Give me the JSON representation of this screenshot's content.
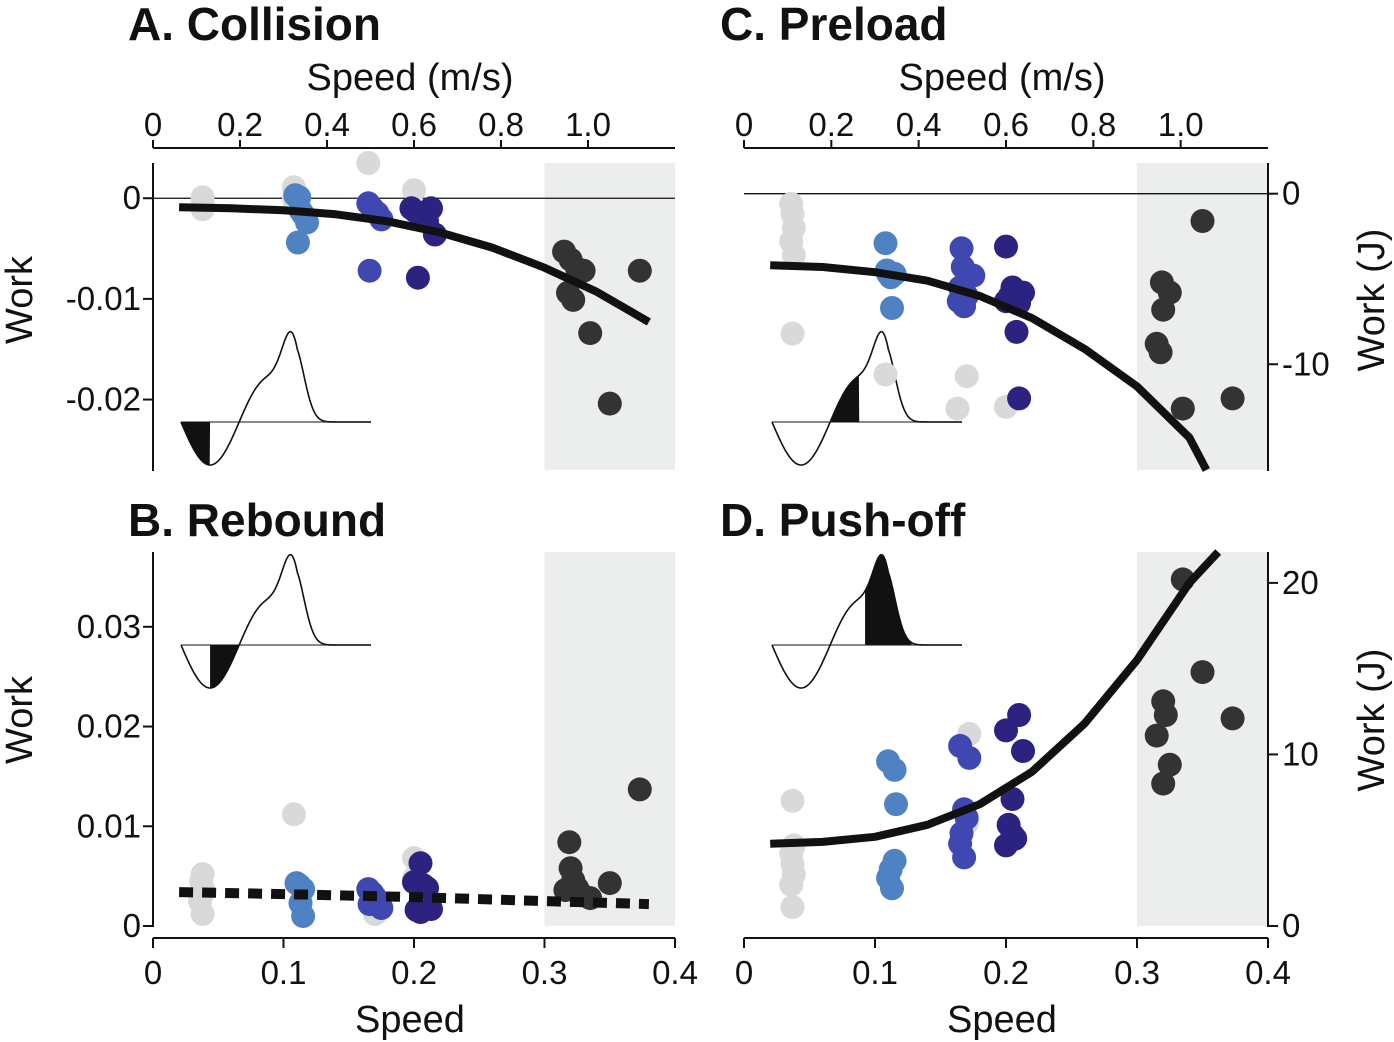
{
  "colors": {
    "light_gray": "#d9d9d9",
    "light_blue": "#4f82c3",
    "mid_blue": "#3f48b0",
    "dark_blue": "#2c2380",
    "charcoal": "#333333",
    "shade": "#eceeee",
    "line": "#111111"
  },
  "chart_data": [
    {
      "id": "collision",
      "type": "scatter",
      "title": "A. Collision",
      "xlabel": "Speed",
      "ylabel": "Work",
      "xlim": [
        0,
        0.4
      ],
      "ylim": [
        -0.027,
        0.0035
      ],
      "yticks": [
        {
          "value": 0,
          "label": "0"
        },
        {
          "value": -0.01,
          "label": "-0.01"
        },
        {
          "value": -0.02,
          "label": "-0.02"
        }
      ],
      "top_axis": {
        "label": "Speed (m/s)",
        "ticks": [
          "0",
          "0.2",
          "0.4",
          "0.6",
          "0.8",
          "1.0"
        ],
        "values": [
          0,
          0.2,
          0.4,
          0.6,
          0.8,
          1.0
        ],
        "max": 1.2
      },
      "zero_line": true,
      "shaded_region": {
        "x_from": 0.3,
        "x_to": 0.4
      },
      "inset": {
        "highlight": "collision",
        "position": "lower-left"
      },
      "fit": {
        "style": "solid",
        "x": [
          0.02,
          0.06,
          0.1,
          0.14,
          0.18,
          0.22,
          0.26,
          0.3,
          0.34,
          0.38
        ],
        "y": [
          -0.0009,
          -0.001,
          -0.0012,
          -0.0016,
          -0.0023,
          -0.0034,
          -0.0049,
          -0.0069,
          -0.0093,
          -0.0123
        ]
      },
      "series": [
        {
          "name": "light_gray",
          "x": [
            0.038,
            0.038,
            0.038,
            0.108,
            0.165,
            0.2,
            0.108
          ],
          "y": [
            0.0001,
            -0.0004,
            -0.0011,
            0.0011,
            0.0035,
            0.0008,
            -0.0001
          ]
        },
        {
          "name": "light_blue",
          "x": [
            0.113,
            0.115,
            0.118,
            0.111,
            0.112,
            0.109
          ],
          "y": [
            -0.0012,
            -0.0016,
            -0.0024,
            -0.0044,
            0.0001,
            0.0003
          ]
        },
        {
          "name": "mid_blue",
          "x": [
            0.165,
            0.168,
            0.17,
            0.172,
            0.175,
            0.166
          ],
          "y": [
            -0.0005,
            -0.001,
            -0.0013,
            -0.0015,
            -0.0021,
            -0.0072
          ]
        },
        {
          "name": "dark_blue",
          "x": [
            0.198,
            0.201,
            0.204,
            0.207,
            0.21,
            0.213,
            0.216,
            0.203
          ],
          "y": [
            -0.001,
            -0.0013,
            -0.0016,
            -0.0019,
            -0.0023,
            -0.001,
            -0.0036,
            -0.0079
          ]
        },
        {
          "name": "charcoal",
          "x": [
            0.315,
            0.32,
            0.325,
            0.318,
            0.322,
            0.33,
            0.373,
            0.335,
            0.35
          ],
          "y": [
            -0.0053,
            -0.0061,
            -0.007,
            -0.0094,
            -0.0101,
            -0.0072,
            -0.0072,
            -0.0134,
            -0.0204
          ]
        }
      ]
    },
    {
      "id": "preload",
      "type": "scatter",
      "title": "C. Preload",
      "xlabel": "Speed",
      "ylabel": "Work (J)",
      "xlim": [
        0,
        0.4
      ],
      "ylim": [
        -16.2,
        1.8
      ],
      "yticks": [
        {
          "value": 0,
          "label": "0"
        },
        {
          "value": -10,
          "label": "-10"
        }
      ],
      "top_axis": {
        "label": "Speed (m/s)",
        "ticks": [
          "0",
          "0.2",
          "0.4",
          "0.6",
          "0.8",
          "1.0"
        ],
        "values": [
          0,
          0.2,
          0.4,
          0.6,
          0.8,
          1.0
        ],
        "max": 1.2
      },
      "zero_line": true,
      "shaded_region": {
        "x_from": 0.3,
        "x_to": 0.4
      },
      "inset": {
        "highlight": "preload",
        "position": "lower-left"
      },
      "fit": {
        "style": "solid",
        "x": [
          0.02,
          0.06,
          0.1,
          0.14,
          0.18,
          0.22,
          0.26,
          0.3,
          0.34,
          0.353
        ],
        "y": [
          -4.2,
          -4.3,
          -4.6,
          -5.1,
          -6.0,
          -7.3,
          -9.1,
          -11.3,
          -14.3,
          -16.2
        ]
      },
      "series": [
        {
          "name": "light_gray",
          "x": [
            0.036,
            0.037,
            0.038,
            0.036,
            0.038,
            0.037,
            0.108,
            0.17,
            0.163,
            0.2
          ],
          "y": [
            -0.6,
            -1.2,
            -2.0,
            -2.8,
            -3.6,
            -8.2,
            -10.6,
            -10.7,
            -12.6,
            -12.5
          ]
        },
        {
          "name": "light_blue",
          "x": [
            0.108,
            0.109,
            0.11,
            0.112,
            0.115,
            0.113
          ],
          "y": [
            -2.9,
            -4.5,
            -4.7,
            -4.9,
            -4.7,
            -6.7
          ]
        },
        {
          "name": "mid_blue",
          "x": [
            0.166,
            0.167,
            0.165,
            0.168,
            0.17,
            0.175,
            0.164,
            0.168
          ],
          "y": [
            -3.2,
            -4.3,
            -5.5,
            -5.7,
            -6.0,
            -4.8,
            -6.3,
            -6.6
          ]
        },
        {
          "name": "dark_blue",
          "x": [
            0.2,
            0.205,
            0.203,
            0.207,
            0.21,
            0.2,
            0.213,
            0.208,
            0.21
          ],
          "y": [
            -3.1,
            -5.5,
            -6.0,
            -6.2,
            -6.4,
            -6.3,
            -5.8,
            -8.1,
            -12.0
          ]
        },
        {
          "name": "charcoal",
          "x": [
            0.319,
            0.32,
            0.325,
            0.315,
            0.318,
            0.335,
            0.35,
            0.373
          ],
          "y": [
            -5.2,
            -6.8,
            -5.8,
            -8.8,
            -9.3,
            -12.6,
            -1.6,
            -12.0
          ]
        }
      ]
    },
    {
      "id": "rebound",
      "type": "scatter",
      "title": "B. Rebound",
      "xlabel": "Speed",
      "ylabel": "Work",
      "xlim": [
        0,
        0.4
      ],
      "ylim": [
        0,
        0.0375
      ],
      "yticks": [
        {
          "value": 0,
          "label": "0"
        },
        {
          "value": 0.01,
          "label": "0.01"
        },
        {
          "value": 0.02,
          "label": "0.02"
        },
        {
          "value": 0.03,
          "label": "0.03"
        }
      ],
      "xticks": [
        {
          "value": 0,
          "label": "0"
        },
        {
          "value": 0.1,
          "label": "0.1"
        },
        {
          "value": 0.2,
          "label": "0.2"
        },
        {
          "value": 0.3,
          "label": "0.3"
        },
        {
          "value": 0.4,
          "label": "0.4"
        }
      ],
      "zero_line": false,
      "shaded_region": {
        "x_from": 0.3,
        "x_to": 0.4
      },
      "inset": {
        "highlight": "rebound",
        "position": "upper-left"
      },
      "fit": {
        "style": "dashed",
        "x": [
          0.02,
          0.1,
          0.2,
          0.3,
          0.38
        ],
        "y": [
          0.0034,
          0.0032,
          0.0029,
          0.0025,
          0.0022
        ]
      },
      "series": [
        {
          "name": "light_gray",
          "x": [
            0.038,
            0.037,
            0.039,
            0.036,
            0.038,
            0.108,
            0.2,
            0.17,
            0.2
          ],
          "y": [
            0.0052,
            0.0045,
            0.0035,
            0.0025,
            0.0012,
            0.0112,
            0.0068,
            0.0012,
            0.0048
          ]
        },
        {
          "name": "light_blue",
          "x": [
            0.11,
            0.112,
            0.115,
            0.113,
            0.115
          ],
          "y": [
            0.0043,
            0.0041,
            0.0037,
            0.0023,
            0.001
          ]
        },
        {
          "name": "mid_blue",
          "x": [
            0.165,
            0.168,
            0.17,
            0.172,
            0.166,
            0.175
          ],
          "y": [
            0.0037,
            0.0033,
            0.0029,
            0.0026,
            0.0022,
            0.0018
          ]
        },
        {
          "name": "dark_blue",
          "x": [
            0.2,
            0.205,
            0.207,
            0.21,
            0.202,
            0.205,
            0.213
          ],
          "y": [
            0.0044,
            0.0063,
            0.0041,
            0.0038,
            0.0016,
            0.0014,
            0.0017
          ]
        },
        {
          "name": "charcoal",
          "x": [
            0.319,
            0.32,
            0.322,
            0.325,
            0.316,
            0.328,
            0.335,
            0.35,
            0.373
          ],
          "y": [
            0.0084,
            0.0058,
            0.0046,
            0.0038,
            0.0036,
            0.0032,
            0.0028,
            0.0043,
            0.0137
          ]
        }
      ]
    },
    {
      "id": "pushoff",
      "type": "scatter",
      "title": "D. Push-off",
      "xlabel": "Speed",
      "ylabel": "Work (J)",
      "xlim": [
        0,
        0.4
      ],
      "ylim": [
        0,
        21.8
      ],
      "yticks": [
        {
          "value": 0,
          "label": "0"
        },
        {
          "value": 10,
          "label": "10"
        },
        {
          "value": 20,
          "label": "20"
        }
      ],
      "xticks": [
        {
          "value": 0,
          "label": "0"
        },
        {
          "value": 0.1,
          "label": "0.1"
        },
        {
          "value": 0.2,
          "label": "0.2"
        },
        {
          "value": 0.3,
          "label": "0.3"
        },
        {
          "value": 0.4,
          "label": "0.4"
        }
      ],
      "zero_line": false,
      "shaded_region": {
        "x_from": 0.3,
        "x_to": 0.4
      },
      "inset": {
        "highlight": "pushoff",
        "position": "upper-left"
      },
      "fit": {
        "style": "solid",
        "x": [
          0.02,
          0.06,
          0.1,
          0.14,
          0.18,
          0.22,
          0.26,
          0.3,
          0.34,
          0.362
        ],
        "y": [
          4.8,
          4.9,
          5.2,
          5.9,
          7.1,
          9.0,
          11.8,
          15.5,
          20.0,
          21.8
        ]
      },
      "series": [
        {
          "name": "light_gray",
          "x": [
            0.037,
            0.038,
            0.036,
            0.037,
            0.038,
            0.036,
            0.037,
            0.172,
            0.17
          ],
          "y": [
            7.3,
            4.7,
            4.2,
            3.6,
            3.0,
            2.4,
            1.1,
            11.2,
            6.0
          ]
        },
        {
          "name": "light_blue",
          "x": [
            0.11,
            0.115,
            0.116,
            0.115,
            0.112,
            0.11,
            0.113
          ],
          "y": [
            9.6,
            9.1,
            7.1,
            3.8,
            3.3,
            2.8,
            2.2
          ]
        },
        {
          "name": "mid_blue",
          "x": [
            0.165,
            0.172,
            0.168,
            0.17,
            0.166,
            0.165,
            0.168
          ],
          "y": [
            10.5,
            9.8,
            6.8,
            6.3,
            5.4,
            4.8,
            4.0
          ]
        },
        {
          "name": "dark_blue",
          "x": [
            0.21,
            0.2,
            0.213,
            0.205,
            0.202,
            0.205,
            0.2,
            0.207
          ],
          "y": [
            12.3,
            11.4,
            10.2,
            7.4,
            5.9,
            5.3,
            4.7,
            5.1
          ]
        },
        {
          "name": "charcoal",
          "x": [
            0.335,
            0.35,
            0.373,
            0.32,
            0.322,
            0.315,
            0.325,
            0.32
          ],
          "y": [
            20.2,
            14.8,
            12.1,
            13.1,
            12.3,
            11.1,
            9.4,
            8.3
          ]
        }
      ]
    }
  ]
}
